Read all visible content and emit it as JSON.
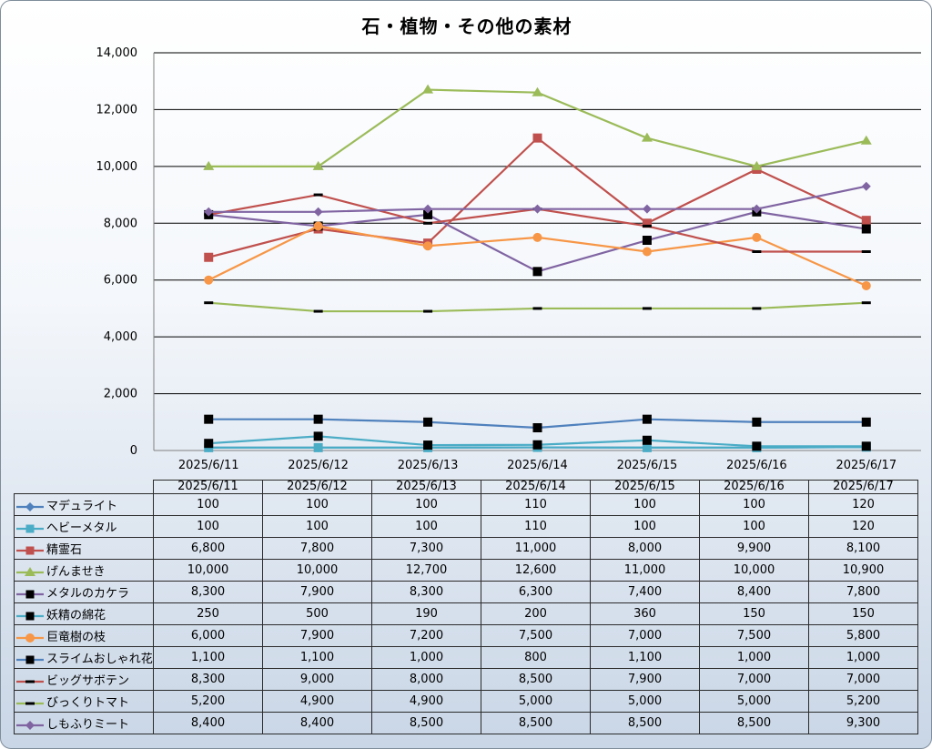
{
  "chart_data": {
    "type": "line",
    "title": "石・植物・その他の素材",
    "categories": [
      "2025/6/11",
      "2025/6/12",
      "2025/6/13",
      "2025/6/14",
      "2025/6/15",
      "2025/6/16",
      "2025/6/17"
    ],
    "ylim": [
      0,
      14000
    ],
    "yticks": [
      "0",
      "2,000",
      "4,000",
      "6,000",
      "8,000",
      "10,000",
      "12,000",
      "14,000"
    ],
    "grid": true,
    "legend": "data-table",
    "series": [
      {
        "name": "マデュライト",
        "color": "#4f81bd",
        "marker": "diamond",
        "values": [
          100,
          100,
          100,
          110,
          100,
          100,
          120
        ],
        "labels": [
          "100",
          "100",
          "100",
          "110",
          "100",
          "100",
          "120"
        ]
      },
      {
        "name": "ヘビーメタル",
        "color": "#4bacc6",
        "marker": "square",
        "values": [
          100,
          100,
          100,
          110,
          100,
          100,
          120
        ],
        "labels": [
          "100",
          "100",
          "100",
          "110",
          "100",
          "100",
          "120"
        ]
      },
      {
        "name": "精霊石",
        "color": "#c0504d",
        "marker": "square",
        "values": [
          6800,
          7800,
          7300,
          11000,
          8000,
          9900,
          8100
        ],
        "labels": [
          "6,800",
          "7,800",
          "7,300",
          "11,000",
          "8,000",
          "9,900",
          "8,100"
        ]
      },
      {
        "name": "げんませき",
        "color": "#9bbb59",
        "marker": "triangle",
        "values": [
          10000,
          10000,
          12700,
          12600,
          11000,
          10000,
          10900
        ],
        "labels": [
          "10,000",
          "10,000",
          "12,700",
          "12,600",
          "11,000",
          "10,000",
          "10,900"
        ]
      },
      {
        "name": "メタルのカケラ",
        "color": "#8064a2",
        "marker": "x",
        "values": [
          8300,
          7900,
          8300,
          6300,
          7400,
          8400,
          7800
        ],
        "labels": [
          "8,300",
          "7,900",
          "8,300",
          "6,300",
          "7,400",
          "8,400",
          "7,800"
        ]
      },
      {
        "name": "妖精の綿花",
        "color": "#4bacc6",
        "marker": "blacksquare",
        "values": [
          250,
          500,
          190,
          200,
          360,
          150,
          150
        ],
        "labels": [
          "250",
          "500",
          "190",
          "200",
          "360",
          "150",
          "150"
        ]
      },
      {
        "name": "巨竜樹の枝",
        "color": "#f79646",
        "marker": "circle",
        "values": [
          6000,
          7900,
          7200,
          7500,
          7000,
          7500,
          5800
        ],
        "labels": [
          "6,000",
          "7,900",
          "7,200",
          "7,500",
          "7,000",
          "7,500",
          "5,800"
        ]
      },
      {
        "name": "スライムおしゃれ花",
        "color": "#4f81bd",
        "marker": "blacksquare",
        "values": [
          1100,
          1100,
          1000,
          800,
          1100,
          1000,
          1000
        ],
        "labels": [
          "1,100",
          "1,100",
          "1,000",
          "800",
          "1,100",
          "1,000",
          "1,000"
        ]
      },
      {
        "name": "ビッグサボテン",
        "color": "#c0504d",
        "marker": "dash",
        "values": [
          8300,
          9000,
          8000,
          8500,
          7900,
          7000,
          7000
        ],
        "labels": [
          "8,300",
          "9,000",
          "8,000",
          "8,500",
          "7,900",
          "7,000",
          "7,000"
        ]
      },
      {
        "name": "びっくりトマト",
        "color": "#9bbb59",
        "marker": "dash",
        "values": [
          5200,
          4900,
          4900,
          5000,
          5000,
          5000,
          5200
        ],
        "labels": [
          "5,200",
          "4,900",
          "4,900",
          "5,000",
          "5,000",
          "5,000",
          "5,200"
        ]
      },
      {
        "name": "しもふりミート",
        "color": "#8064a2",
        "marker": "diamond",
        "values": [
          8400,
          8400,
          8500,
          8500,
          8500,
          8500,
          9300
        ],
        "labels": [
          "8,400",
          "8,400",
          "8,500",
          "8,500",
          "8,500",
          "8,500",
          "9,300"
        ]
      }
    ]
  }
}
